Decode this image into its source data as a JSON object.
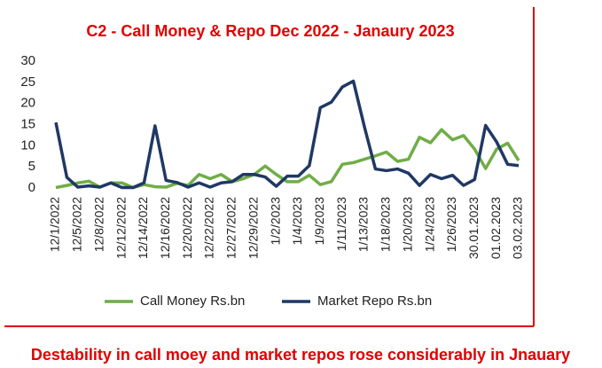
{
  "chart_data": {
    "type": "line",
    "title": "C2 - Call Money & Repo Dec 2022 - Janaury 2023",
    "footer": "Destability in call moey and market repos rose considerably in Jnauary",
    "categories": [
      "12/1/2022",
      null,
      "12/5/2022",
      null,
      "12/8/2022",
      null,
      "12/12/2022",
      null,
      "12/14/2022",
      null,
      "12/16/2022",
      null,
      "12/20/2022",
      null,
      "12/22/2022",
      null,
      "12/27/2022",
      null,
      "12/29/2022",
      null,
      "1/2/2023",
      null,
      "1/4/2023",
      null,
      "1/9/2023",
      null,
      "1/11/2023",
      null,
      "1/13/2023",
      null,
      "1/18/2023",
      null,
      "1/20/2023",
      null,
      "1/24/2023",
      null,
      "1/26/2023",
      null,
      "30.01.2023",
      null,
      "01.02.2023",
      null,
      "03.02.2023"
    ],
    "series": [
      {
        "name": "Call Money Rs.bn",
        "color": "#70ad47",
        "values": [
          0.1,
          0.6,
          1.2,
          1.6,
          0.2,
          1.2,
          1.2,
          0.1,
          0.8,
          0.3,
          0.2,
          1.1,
          0.6,
          3.2,
          2.2,
          3.2,
          1.5,
          2.2,
          3.2,
          5.2,
          3.2,
          1.5,
          1.5,
          3,
          0.8,
          1.5,
          5.6,
          6,
          6.8,
          7.6,
          8.5,
          6.3,
          6.8,
          12,
          10.7,
          13.8,
          11.4,
          12.4,
          9.2,
          4.6,
          9.2,
          10.6,
          6.5
        ]
      },
      {
        "name": "Market Repo Rs.bn",
        "color": "#203864",
        "values": [
          15.5,
          2.5,
          0.2,
          0.5,
          0.2,
          1.2,
          0.1,
          0.1,
          1.2,
          14.7,
          1.8,
          1.3,
          0.2,
          1.2,
          0.2,
          1.2,
          1.5,
          3.2,
          3.2,
          2.6,
          0.4,
          2.8,
          2.8,
          5.3,
          19,
          20.3,
          23.9,
          25.3,
          14.5,
          4.5,
          4.1,
          4.5,
          3.5,
          0.6,
          3.2,
          2.2,
          3,
          0.6,
          2,
          14.8,
          10.9,
          5.6,
          5.3
        ]
      }
    ],
    "ylim": [
      0,
      30
    ],
    "yticks": [
      0,
      5,
      10,
      15,
      20,
      25,
      30
    ],
    "grid": false,
    "legend": "bottom"
  }
}
